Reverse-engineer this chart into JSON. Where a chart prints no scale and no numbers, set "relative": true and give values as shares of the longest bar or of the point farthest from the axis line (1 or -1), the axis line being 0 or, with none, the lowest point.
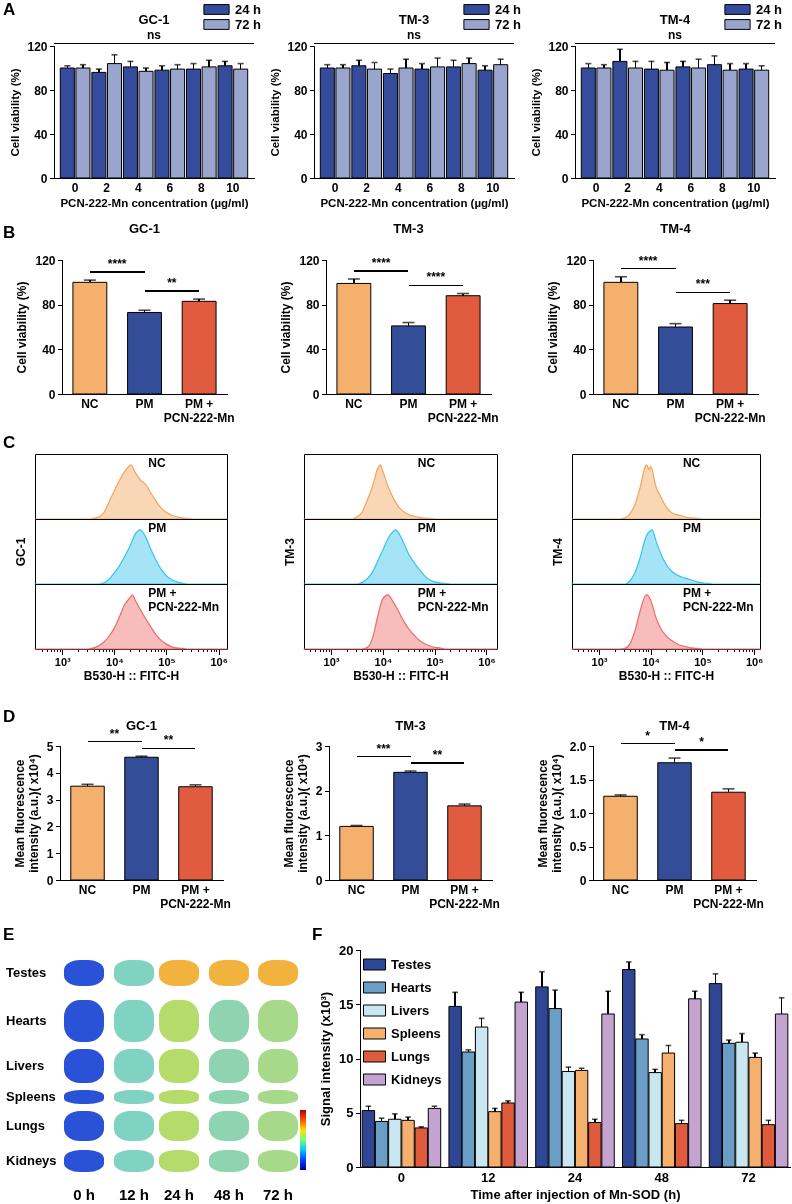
{
  "chart_data": [
    {
      "type": "bar",
      "title": "GC-1",
      "xlabel": "PCN-222-Mn concentration (µg/ml)",
      "ylabel": "Cell viability (%)",
      "categories": [
        "0",
        "2",
        "4",
        "6",
        "8",
        "10"
      ],
      "series": [
        {
          "name": "24 h",
          "color": "#354c9c",
          "values": [
            100,
            96,
            101,
            98,
            99,
            102
          ],
          "errors": [
            [
              100,
              102
            ],
            [
              96,
              99
            ],
            [
              101,
              106
            ],
            [
              98,
              102
            ],
            [
              99,
              104
            ],
            [
              102,
              106
            ]
          ]
        },
        {
          "name": "72 h",
          "color": "#9aa5cd",
          "values": [
            100,
            104,
            97,
            99,
            101,
            99
          ],
          "errors": [
            [
              100,
              103
            ],
            [
              104,
              112
            ],
            [
              97,
              100
            ],
            [
              99,
              103
            ],
            [
              101,
              107
            ],
            [
              99,
              104
            ]
          ]
        }
      ],
      "ylim": [
        0,
        120
      ],
      "yticks": [
        0,
        40,
        80,
        120
      ],
      "legend": "top right",
      "annotations": [
        "A",
        "ns"
      ]
    },
    {
      "type": "bar",
      "title": "TM-3",
      "xlabel": "PCN-222-Mn concentration (µg/ml)",
      "ylabel": "Cell viability (%)",
      "categories": [
        "0",
        "2",
        "4",
        "6",
        "8",
        "10"
      ],
      "series": [
        {
          "name": "24 h",
          "color": "#354c9c",
          "values": [
            100,
            102,
            95,
            99,
            101,
            98
          ],
          "errors": [
            [
              100,
              103
            ],
            [
              102,
              107
            ],
            [
              95,
              99
            ],
            [
              99,
              104
            ],
            [
              101,
              107
            ],
            [
              98,
              102
            ]
          ]
        },
        {
          "name": "72 h",
          "color": "#9aa5cd",
          "values": [
            100,
            99,
            100,
            101,
            104,
            103
          ],
          "errors": [
            [
              100,
              103
            ],
            [
              99,
              105
            ],
            [
              100,
              108
            ],
            [
              101,
              109
            ],
            [
              104,
              109
            ],
            [
              103,
              108
            ]
          ]
        }
      ],
      "ylim": [
        0,
        120
      ],
      "yticks": [
        0,
        40,
        80,
        120
      ],
      "legend": "top right",
      "annotations": [
        "ns"
      ]
    },
    {
      "type": "bar",
      "title": "TM-4",
      "xlabel": "PCN-222-Mn concentration (µg/ml)",
      "ylabel": "Cell viability (%)",
      "categories": [
        "0",
        "2",
        "4",
        "6",
        "8",
        "10"
      ],
      "series": [
        {
          "name": "24 h",
          "color": "#354c9c",
          "values": [
            100,
            106,
            99,
            101,
            103,
            99
          ],
          "errors": [
            [
              100,
              104
            ],
            [
              106,
              117
            ],
            [
              99,
              106
            ],
            [
              101,
              106
            ],
            [
              103,
              111
            ],
            [
              99,
              104
            ]
          ]
        },
        {
          "name": "72 h",
          "color": "#9aa5cd",
          "values": [
            100,
            100,
            98,
            100,
            98,
            98
          ],
          "errors": [
            [
              100,
              103
            ],
            [
              100,
              106
            ],
            [
              98,
              105
            ],
            [
              100,
              108
            ],
            [
              98,
              104
            ],
            [
              98,
              102
            ]
          ]
        }
      ],
      "ylim": [
        0,
        120
      ],
      "yticks": [
        0,
        40,
        80,
        120
      ],
      "legend": "top right",
      "annotations": [
        "ns"
      ]
    },
    {
      "type": "bar",
      "title": "GC-1",
      "ylabel": "Cell viability (%)",
      "categories": [
        "NC",
        "PM",
        "PM + PCN-222-Mn"
      ],
      "values": [
        100,
        73,
        83
      ],
      "colors": [
        "#f5b06e",
        "#334d99",
        "#e15c3f"
      ],
      "errors": [
        [
          100,
          102
        ],
        [
          73,
          75
        ],
        [
          83,
          85
        ]
      ],
      "ylim": [
        0,
        120
      ],
      "yticks": [
        0,
        40,
        80,
        120
      ],
      "annotations": [
        "B",
        "****",
        "**"
      ]
    },
    {
      "type": "bar",
      "title": "TM-3",
      "ylabel": "Cell viability (%)",
      "categories": [
        "NC",
        "PM",
        "PM + PCN-222-Mn"
      ],
      "values": [
        99,
        61,
        88
      ],
      "colors": [
        "#f5b06e",
        "#334d99",
        "#e15c3f"
      ],
      "errors": [
        [
          99,
          103
        ],
        [
          61,
          64
        ],
        [
          88,
          90
        ]
      ],
      "ylim": [
        0,
        120
      ],
      "yticks": [
        0,
        40,
        80,
        120
      ],
      "annotations": [
        "****",
        "****"
      ]
    },
    {
      "type": "bar",
      "title": "TM-4",
      "ylabel": "Cell viability (%)",
      "categories": [
        "NC",
        "PM",
        "PM + PCN-222-Mn"
      ],
      "values": [
        100,
        60,
        81
      ],
      "colors": [
        "#f5b06e",
        "#334d99",
        "#e15c3f"
      ],
      "errors": [
        [
          100,
          105
        ],
        [
          60,
          63
        ],
        [
          81,
          84
        ]
      ],
      "ylim": [
        0,
        120
      ],
      "yticks": [
        0,
        40,
        80,
        120
      ],
      "annotations": [
        "****",
        "***"
      ]
    },
    {
      "type": "area",
      "relative": true,
      "log": "x",
      "xlim": [
        300,
        1450000
      ],
      "tick_labels": false,
      "series": [
        {
          "name": "NC",
          "color": "#f2a55c",
          "x": [
            300,
            3160,
            3980,
            5010,
            6310,
            7940,
            10000,
            12600,
            15800,
            20000,
            20900,
            25100,
            31600,
            39800,
            50100,
            63100,
            79400,
            100000,
            126000,
            158000,
            200000,
            251000,
            316000,
            1450000
          ],
          "values": [
            0,
            0,
            0.01,
            0.04,
            0.12,
            0.32,
            0.52,
            0.72,
            0.88,
            0.99,
            1,
            0.86,
            0.72,
            0.64,
            0.48,
            0.33,
            0.2,
            0.12,
            0.07,
            0.04,
            0.02,
            0.01,
            0,
            0
          ]
        }
      ],
      "annotations": [
        "C"
      ]
    },
    {
      "type": "area",
      "relative": true,
      "log": "x",
      "xlim": [
        300,
        1450000
      ],
      "tick_labels": false,
      "ylabel": "GC-1",
      "series": [
        {
          "name": "PM",
          "color": "#35c4ec",
          "x": [
            300,
            5010,
            6310,
            7940,
            10000,
            12600,
            15800,
            20000,
            25100,
            31600,
            39800,
            50100,
            63100,
            79400,
            100000,
            126000,
            158000,
            200000,
            251000,
            1450000
          ],
          "values": [
            0,
            0,
            0.02,
            0.09,
            0.21,
            0.34,
            0.51,
            0.7,
            0.92,
            1,
            0.87,
            0.64,
            0.44,
            0.27,
            0.15,
            0.08,
            0.04,
            0.015,
            0,
            0
          ]
        }
      ]
    },
    {
      "type": "area",
      "relative": true,
      "log": "x",
      "xlim": [
        300,
        1450000
      ],
      "tick_labels": "x",
      "xlabel": "B530-H :: FITC-H",
      "xticks": [
        {
          "value": 400,
          "label": null
        },
        {
          "value": 500,
          "label": null
        },
        {
          "value": 600,
          "label": null
        },
        {
          "value": 700,
          "label": null
        },
        {
          "value": 800,
          "label": null
        },
        {
          "value": 900,
          "label": null
        },
        {
          "value": 1000,
          "label": "10³"
        },
        {
          "value": 2000,
          "label": null
        },
        {
          "value": 3000,
          "label": null
        },
        {
          "value": 4000,
          "label": null
        },
        {
          "value": 5000,
          "label": null
        },
        {
          "value": 6000,
          "label": null
        },
        {
          "value": 7000,
          "label": null
        },
        {
          "value": 8000,
          "label": null
        },
        {
          "value": 9000,
          "label": null
        },
        {
          "value": 10000,
          "label": "10⁴"
        },
        {
          "value": 20000,
          "label": null
        },
        {
          "value": 30000,
          "label": null
        },
        {
          "value": 40000,
          "label": null
        },
        {
          "value": 50000,
          "label": null
        },
        {
          "value": 60000,
          "label": null
        },
        {
          "value": 70000,
          "label": null
        },
        {
          "value": 80000,
          "label": null
        },
        {
          "value": 90000,
          "label": null
        },
        {
          "value": 100000,
          "label": "10⁵"
        },
        {
          "value": 200000,
          "label": null
        },
        {
          "value": 300000,
          "label": null
        },
        {
          "value": 400000,
          "label": null
        },
        {
          "value": 500000,
          "label": null
        },
        {
          "value": 600000,
          "label": null
        },
        {
          "value": 700000,
          "label": null
        },
        {
          "value": 800000,
          "label": null
        },
        {
          "value": 900000,
          "label": null
        },
        {
          "value": 1000000,
          "label": "10⁶"
        }
      ],
      "series": [
        {
          "name": "PM + PCN-222-Mn",
          "color": "#ee6b6b",
          "x": [
            300,
            3160,
            3980,
            5010,
            6310,
            7940,
            10000,
            12600,
            15800,
            20000,
            22400,
            25100,
            31600,
            39800,
            50100,
            63100,
            79400,
            100000,
            126000,
            158000,
            200000,
            251000,
            1450000
          ],
          "values": [
            0,
            0,
            0.02,
            0.06,
            0.13,
            0.24,
            0.39,
            0.6,
            0.82,
            0.95,
            1,
            0.9,
            0.73,
            0.56,
            0.41,
            0.26,
            0.16,
            0.09,
            0.04,
            0.02,
            0.01,
            0,
            0
          ]
        }
      ]
    },
    {
      "type": "area",
      "relative": true,
      "log": "x",
      "xlim": [
        300,
        1600000
      ],
      "tick_labels": false,
      "series": [
        {
          "name": "NC",
          "color": "#f2a55c",
          "x": [
            300,
            2510,
            3160,
            3980,
            5010,
            6310,
            7940,
            8910,
            10000,
            12600,
            15800,
            20000,
            25100,
            31600,
            39800,
            50100,
            63100,
            79400,
            100000,
            1600000
          ],
          "values": [
            0,
            0,
            0.04,
            0.13,
            0.35,
            0.6,
            0.93,
            1,
            0.88,
            0.6,
            0.39,
            0.23,
            0.14,
            0.08,
            0.05,
            0.03,
            0.015,
            0.01,
            0,
            0
          ]
        }
      ]
    },
    {
      "type": "area",
      "relative": true,
      "log": "x",
      "xlim": [
        300,
        1600000
      ],
      "tick_labels": false,
      "ylabel": "TM-3",
      "series": [
        {
          "name": "PM",
          "color": "#35c4ec",
          "x": [
            300,
            3160,
            3980,
            5010,
            6310,
            7940,
            10000,
            12600,
            15800,
            17800,
            20000,
            25100,
            31600,
            39800,
            50100,
            63100,
            79400,
            100000,
            126000,
            158000,
            200000,
            1600000
          ],
          "values": [
            0,
            0,
            0.03,
            0.1,
            0.22,
            0.42,
            0.63,
            0.84,
            0.97,
            1,
            0.95,
            0.76,
            0.55,
            0.4,
            0.27,
            0.16,
            0.08,
            0.04,
            0.02,
            0.01,
            0,
            0
          ]
        }
      ]
    },
    {
      "type": "area",
      "relative": true,
      "log": "x",
      "xlim": [
        300,
        1600000
      ],
      "tick_labels": "x",
      "xlabel": "B530-H :: FITC-H",
      "xticks": [
        {
          "value": 400,
          "label": null
        },
        {
          "value": 500,
          "label": null
        },
        {
          "value": 600,
          "label": null
        },
        {
          "value": 700,
          "label": null
        },
        {
          "value": 800,
          "label": null
        },
        {
          "value": 900,
          "label": null
        },
        {
          "value": 1000,
          "label": "10³"
        },
        {
          "value": 2000,
          "label": null
        },
        {
          "value": 3000,
          "label": null
        },
        {
          "value": 4000,
          "label": null
        },
        {
          "value": 5000,
          "label": null
        },
        {
          "value": 6000,
          "label": null
        },
        {
          "value": 7000,
          "label": null
        },
        {
          "value": 8000,
          "label": null
        },
        {
          "value": 9000,
          "label": null
        },
        {
          "value": 10000,
          "label": "10⁴"
        },
        {
          "value": 20000,
          "label": null
        },
        {
          "value": 30000,
          "label": null
        },
        {
          "value": 40000,
          "label": null
        },
        {
          "value": 50000,
          "label": null
        },
        {
          "value": 60000,
          "label": null
        },
        {
          "value": 70000,
          "label": null
        },
        {
          "value": 80000,
          "label": null
        },
        {
          "value": 90000,
          "label": null
        },
        {
          "value": 100000,
          "label": "10⁵"
        },
        {
          "value": 200000,
          "label": null
        },
        {
          "value": 300000,
          "label": null
        },
        {
          "value": 400000,
          "label": null
        },
        {
          "value": 500000,
          "label": null
        },
        {
          "value": 600000,
          "label": null
        },
        {
          "value": 700000,
          "label": null
        },
        {
          "value": 800000,
          "label": null
        },
        {
          "value": 900000,
          "label": null
        },
        {
          "value": 1000000,
          "label": "10⁶"
        }
      ],
      "series": [
        {
          "name": "PM + PCN-222-Mn",
          "color": "#ee6b6b",
          "x": [
            300,
            3980,
            5010,
            6310,
            7940,
            10000,
            12600,
            15800,
            20000,
            25100,
            31600,
            39800,
            50100,
            63100,
            79400,
            100000,
            126000,
            158000,
            1600000
          ],
          "values": [
            0,
            0,
            0.03,
            0.2,
            0.6,
            0.93,
            1,
            0.87,
            0.7,
            0.52,
            0.37,
            0.26,
            0.16,
            0.1,
            0.06,
            0.03,
            0.02,
            0,
            0
          ]
        }
      ]
    },
    {
      "type": "area",
      "relative": true,
      "log": "x",
      "xlim": [
        300,
        1300000
      ],
      "tick_labels": false,
      "series": [
        {
          "name": "NC",
          "color": "#f2a55c",
          "x": [
            300,
            2510,
            3160,
            3980,
            5010,
            6310,
            7940,
            8320,
            9330,
            10000,
            12600,
            15800,
            20000,
            25100,
            31600,
            39800,
            50100,
            63100,
            79400,
            100000,
            1300000
          ],
          "values": [
            0,
            0,
            0.02,
            0.1,
            0.28,
            0.6,
            0.98,
            1,
            0.91,
            0.97,
            0.6,
            0.4,
            0.22,
            0.12,
            0.08,
            0.06,
            0.03,
            0.02,
            0.01,
            0,
            0
          ]
        }
      ]
    },
    {
      "type": "area",
      "relative": true,
      "log": "x",
      "xlim": [
        300,
        1300000
      ],
      "tick_labels": false,
      "ylabel": "TM-4",
      "series": [
        {
          "name": "PM",
          "color": "#35c4ec",
          "x": [
            300,
            3160,
            3980,
            5010,
            6310,
            7940,
            10000,
            10700,
            12600,
            15800,
            20000,
            25100,
            31600,
            39800,
            50100,
            63100,
            79400,
            100000,
            126000,
            158000,
            1300000
          ],
          "values": [
            0,
            0,
            0.06,
            0.22,
            0.5,
            0.85,
            0.99,
            1,
            0.8,
            0.55,
            0.36,
            0.24,
            0.17,
            0.13,
            0.1,
            0.07,
            0.04,
            0.02,
            0.01,
            0,
            0
          ]
        }
      ]
    },
    {
      "type": "area",
      "relative": true,
      "log": "x",
      "xlim": [
        300,
        1300000
      ],
      "tick_labels": "x",
      "xlabel": "B530-H :: FITC-H",
      "xticks": [
        {
          "value": 400,
          "label": null
        },
        {
          "value": 500,
          "label": null
        },
        {
          "value": 600,
          "label": null
        },
        {
          "value": 700,
          "label": null
        },
        {
          "value": 800,
          "label": null
        },
        {
          "value": 900,
          "label": null
        },
        {
          "value": 1000,
          "label": "10³"
        },
        {
          "value": 2000,
          "label": null
        },
        {
          "value": 3000,
          "label": null
        },
        {
          "value": 4000,
          "label": null
        },
        {
          "value": 5000,
          "label": null
        },
        {
          "value": 6000,
          "label": null
        },
        {
          "value": 7000,
          "label": null
        },
        {
          "value": 8000,
          "label": null
        },
        {
          "value": 9000,
          "label": null
        },
        {
          "value": 10000,
          "label": "10⁴"
        },
        {
          "value": 20000,
          "label": null
        },
        {
          "value": 30000,
          "label": null
        },
        {
          "value": 40000,
          "label": null
        },
        {
          "value": 50000,
          "label": null
        },
        {
          "value": 60000,
          "label": null
        },
        {
          "value": 70000,
          "label": null
        },
        {
          "value": 80000,
          "label": null
        },
        {
          "value": 90000,
          "label": null
        },
        {
          "value": 100000,
          "label": "10⁵"
        },
        {
          "value": 200000,
          "label": null
        },
        {
          "value": 300000,
          "label": null
        },
        {
          "value": 400000,
          "label": null
        },
        {
          "value": 500000,
          "label": null
        },
        {
          "value": 600000,
          "label": null
        },
        {
          "value": 700000,
          "label": null
        },
        {
          "value": 800000,
          "label": null
        },
        {
          "value": 900000,
          "label": null
        },
        {
          "value": 1000000,
          "label": "10⁶"
        }
      ],
      "series": [
        {
          "name": "PM + PCN-222-Mn",
          "color": "#ee6b6b",
          "x": [
            300,
            2510,
            3160,
            3980,
            5010,
            6310,
            7940,
            8320,
            10000,
            12600,
            15800,
            20000,
            25100,
            31600,
            39800,
            50100,
            63100,
            79400,
            100000,
            1300000
          ],
          "values": [
            0,
            0,
            0.01,
            0.1,
            0.35,
            0.72,
            0.99,
            1,
            0.9,
            0.58,
            0.37,
            0.24,
            0.16,
            0.1,
            0.06,
            0.04,
            0.02,
            0.01,
            0,
            0
          ]
        }
      ]
    },
    {
      "type": "bar",
      "title": "GC-1",
      "ylabel": "Mean fluorescence intensity (a.u.)( x10⁴)",
      "categories": [
        "NC",
        "PM",
        "PM + PCN-222-Mn"
      ],
      "values": [
        3.5,
        4.58,
        3.48
      ],
      "colors": [
        "#f5b06e",
        "#334d99",
        "#e15c3f"
      ],
      "errors": [
        [
          3.5,
          3.57
        ],
        [
          4.58,
          4.62
        ],
        [
          3.48,
          3.55
        ]
      ],
      "ylim": [
        0,
        5
      ],
      "yticks": [
        0,
        1,
        2,
        3,
        4,
        5
      ],
      "annotations": [
        "D",
        "**",
        "**"
      ]
    },
    {
      "type": "bar",
      "title": "TM-3",
      "ylabel": "Mean fluorescence intensity (a.u.)( x10⁴)",
      "categories": [
        "NC",
        "PM",
        "PM + PCN-222-Mn"
      ],
      "values": [
        1.2,
        2.41,
        1.66
      ],
      "colors": [
        "#f5b06e",
        "#334d99",
        "#e15c3f"
      ],
      "errors": [
        [
          1.2,
          1.22
        ],
        [
          2.41,
          2.44
        ],
        [
          1.66,
          1.7
        ]
      ],
      "ylim": [
        0,
        3
      ],
      "yticks": [
        0,
        1,
        2,
        3
      ],
      "annotations": [
        "***",
        "**"
      ]
    },
    {
      "type": "bar",
      "title": "TM-4",
      "ylabel": "Mean fluorescence intensity (a.u.)( x10⁴)",
      "categories": [
        "NC",
        "PM",
        "PM + PCN-222-Mn"
      ],
      "values": [
        1.25,
        1.75,
        1.31
      ],
      "colors": [
        "#f5b06e",
        "#334d99",
        "#e15c3f"
      ],
      "errors": [
        [
          1.25,
          1.27
        ],
        [
          1.75,
          1.82
        ],
        [
          1.31,
          1.36
        ]
      ],
      "ylim": [
        0,
        2
      ],
      "yticks": [
        0,
        0.5,
        {
          "value": 1,
          "label": "1.0"
        },
        1.5,
        {
          "value": 2,
          "label": "2.0"
        }
      ],
      "annotations": [
        "*",
        "*"
      ]
    },
    {
      "type": "other",
      "categories": [
        "0 h",
        "12 h",
        "24 h",
        "48 h",
        "72 h"
      ],
      "y_categories": [
        "Testes",
        "Hearts",
        "Livers",
        "Spleens",
        "Lungs",
        "Kidneys"
      ],
      "annotations": [
        "E"
      ]
    },
    {
      "type": "bar",
      "xlabel": "Time after injection of Mn-SOD (h)",
      "ylabel": "Signal intensity (x10³)",
      "categories": [
        "0",
        "12",
        "24",
        "48",
        "72"
      ],
      "series": [
        {
          "name": "Testes",
          "color": "#2f4695",
          "values": [
            5.2,
            14.8,
            16.6,
            18.2,
            16.9
          ],
          "errors": [
            [
              5.2,
              5.6
            ],
            [
              14.8,
              16.1
            ],
            [
              16.6,
              18
            ],
            [
              18.2,
              18.9
            ],
            [
              16.9,
              17.8
            ]
          ]
        },
        {
          "name": "Hearts",
          "color": "#6a9ec7",
          "values": [
            4.2,
            10.6,
            14.6,
            11.8,
            11.4
          ],
          "errors": [
            [
              4.2,
              4.5
            ],
            [
              10.6,
              10.8
            ],
            [
              14.6,
              16.3
            ],
            [
              11.8,
              12.2
            ],
            [
              11.4,
              11.7
            ]
          ]
        },
        {
          "name": "Livers",
          "color": "#c9e7f0",
          "values": [
            4.4,
            12.9,
            8.8,
            8.7,
            11.5
          ],
          "errors": [
            [
              4.4,
              4.9
            ],
            [
              12.9,
              13.7
            ],
            [
              8.8,
              9.2
            ],
            [
              8.7,
              9
            ],
            [
              11.5,
              12.3
            ]
          ]
        },
        {
          "name": "Spleens",
          "color": "#f5b06e",
          "values": [
            4.3,
            5.1,
            8.9,
            10.5,
            10.1
          ],
          "errors": [
            [
              4.3,
              4.6
            ],
            [
              5.1,
              5.4
            ],
            [
              8.9,
              9.1
            ],
            [
              10.5,
              11.2
            ],
            [
              10.1,
              10.5
            ]
          ]
        },
        {
          "name": "Lungs",
          "color": "#e05a3c",
          "values": [
            3.6,
            5.9,
            4.1,
            4,
            3.9
          ],
          "errors": [
            [
              3.6,
              3.7
            ],
            [
              5.9,
              6.1
            ],
            [
              4.1,
              4.4
            ],
            [
              4,
              4.3
            ],
            [
              3.9,
              4.3
            ]
          ]
        },
        {
          "name": "Kidneys",
          "color": "#c5a3d1",
          "values": [
            5.4,
            15.2,
            14.1,
            15.5,
            14.1
          ],
          "errors": [
            [
              5.4,
              5.6
            ],
            [
              15.2,
              16.1
            ],
            [
              14.1,
              16.2
            ],
            [
              15.5,
              16.2
            ],
            [
              14.1,
              15.6
            ]
          ]
        }
      ],
      "ylim": [
        0,
        20
      ],
      "yticks": [
        0,
        5,
        10,
        15,
        20
      ],
      "legend": "top left",
      "annotations": [
        "F"
      ]
    }
  ]
}
